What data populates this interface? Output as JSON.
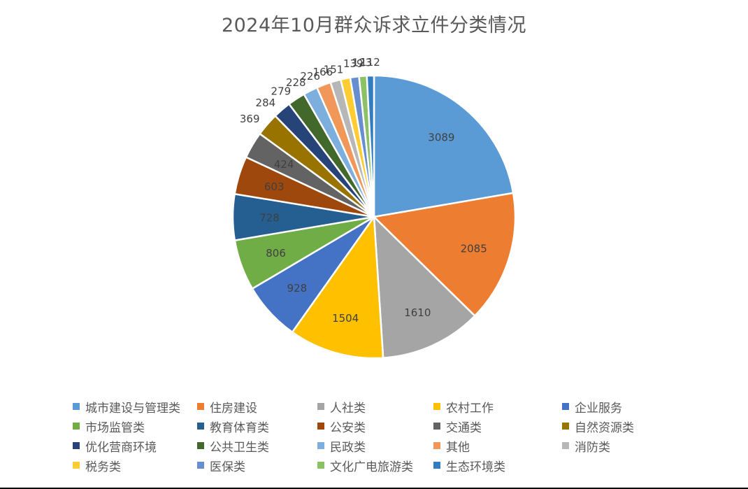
{
  "chart_data": {
    "type": "pie",
    "title": "2024年10月群众诉求立件分类情况",
    "categories": [
      "城市建设与管理类",
      "住房建设",
      "人社类",
      "农村工作",
      "企业服务",
      "市场监管类",
      "教育体育类",
      "公安类",
      "交通类",
      "自然资源类",
      "优化营商环境",
      "公共卫生类",
      "民政类",
      "其他",
      "消防类",
      "税务类",
      "医保类",
      "文化广电旅游类",
      "生态环境类"
    ],
    "values": [
      3089,
      2085,
      1610,
      1504,
      928,
      806,
      728,
      603,
      424,
      369,
      284,
      279,
      228,
      226,
      166,
      151,
      139,
      123,
      112
    ],
    "labels": [
      "3089",
      "2085",
      "1610",
      "1504",
      "928",
      "806",
      "728",
      "603",
      "424",
      "369",
      "284",
      "279",
      "228",
      "226",
      "166",
      "151",
      "139",
      "123",
      "112"
    ],
    "colors": [
      "#5B9BD5",
      "#ED7D31",
      "#A5A5A5",
      "#FFC000",
      "#4472C4",
      "#70AD47",
      "#255E91",
      "#9E480E",
      "#636363",
      "#997300",
      "#264478",
      "#43682B",
      "#7CAFDD",
      "#F1975A",
      "#B7B7B7",
      "#FFCD33",
      "#698ED0",
      "#8CC168",
      "#327DC2"
    ],
    "legend_position": "bottom"
  }
}
